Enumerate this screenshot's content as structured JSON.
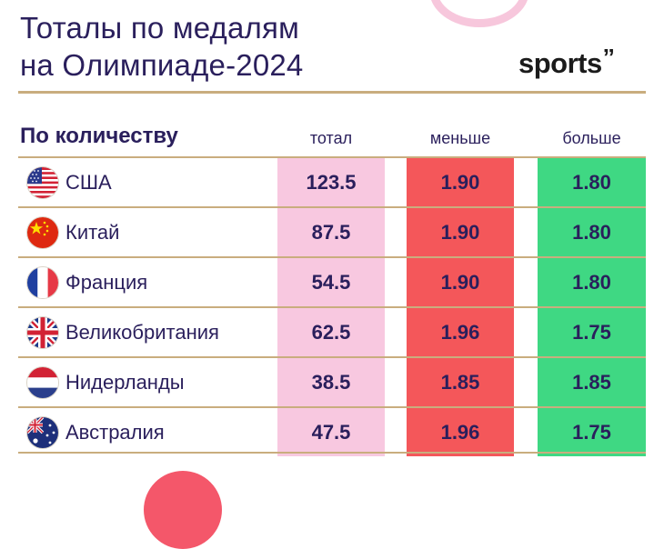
{
  "header": {
    "title_line1": "Тоталы по медалям",
    "title_line2": "на Олимпиаде-2024",
    "logo_text": "sports",
    "logo_mark": "’’"
  },
  "table": {
    "heading": "По количеству",
    "columns": {
      "total": "тотал",
      "less": "меньше",
      "more": "больше"
    },
    "rows": [
      {
        "country": "США",
        "flag": "usa-flag-icon",
        "total": "123.5",
        "less": "1.90",
        "more": "1.80"
      },
      {
        "country": "Китай",
        "flag": "china-flag-icon",
        "total": "87.5",
        "less": "1.90",
        "more": "1.80"
      },
      {
        "country": "Франция",
        "flag": "france-flag-icon",
        "total": "54.5",
        "less": "1.90",
        "more": "1.80"
      },
      {
        "country": "Великобритания",
        "flag": "uk-flag-icon",
        "total": "62.5",
        "less": "1.96",
        "more": "1.75"
      },
      {
        "country": "Нидерланды",
        "flag": "netherlands-flag-icon",
        "total": "38.5",
        "less": "1.85",
        "more": "1.85"
      },
      {
        "country": "Австралия",
        "flag": "australia-flag-icon",
        "total": "47.5",
        "less": "1.96",
        "more": "1.75"
      }
    ]
  },
  "colors": {
    "title": "#2a1f5c",
    "rule_gold": "#c9ad7e",
    "total_bg": "#f8c8e0",
    "less_bg": "#f4575a",
    "more_bg": "#3fd883"
  }
}
